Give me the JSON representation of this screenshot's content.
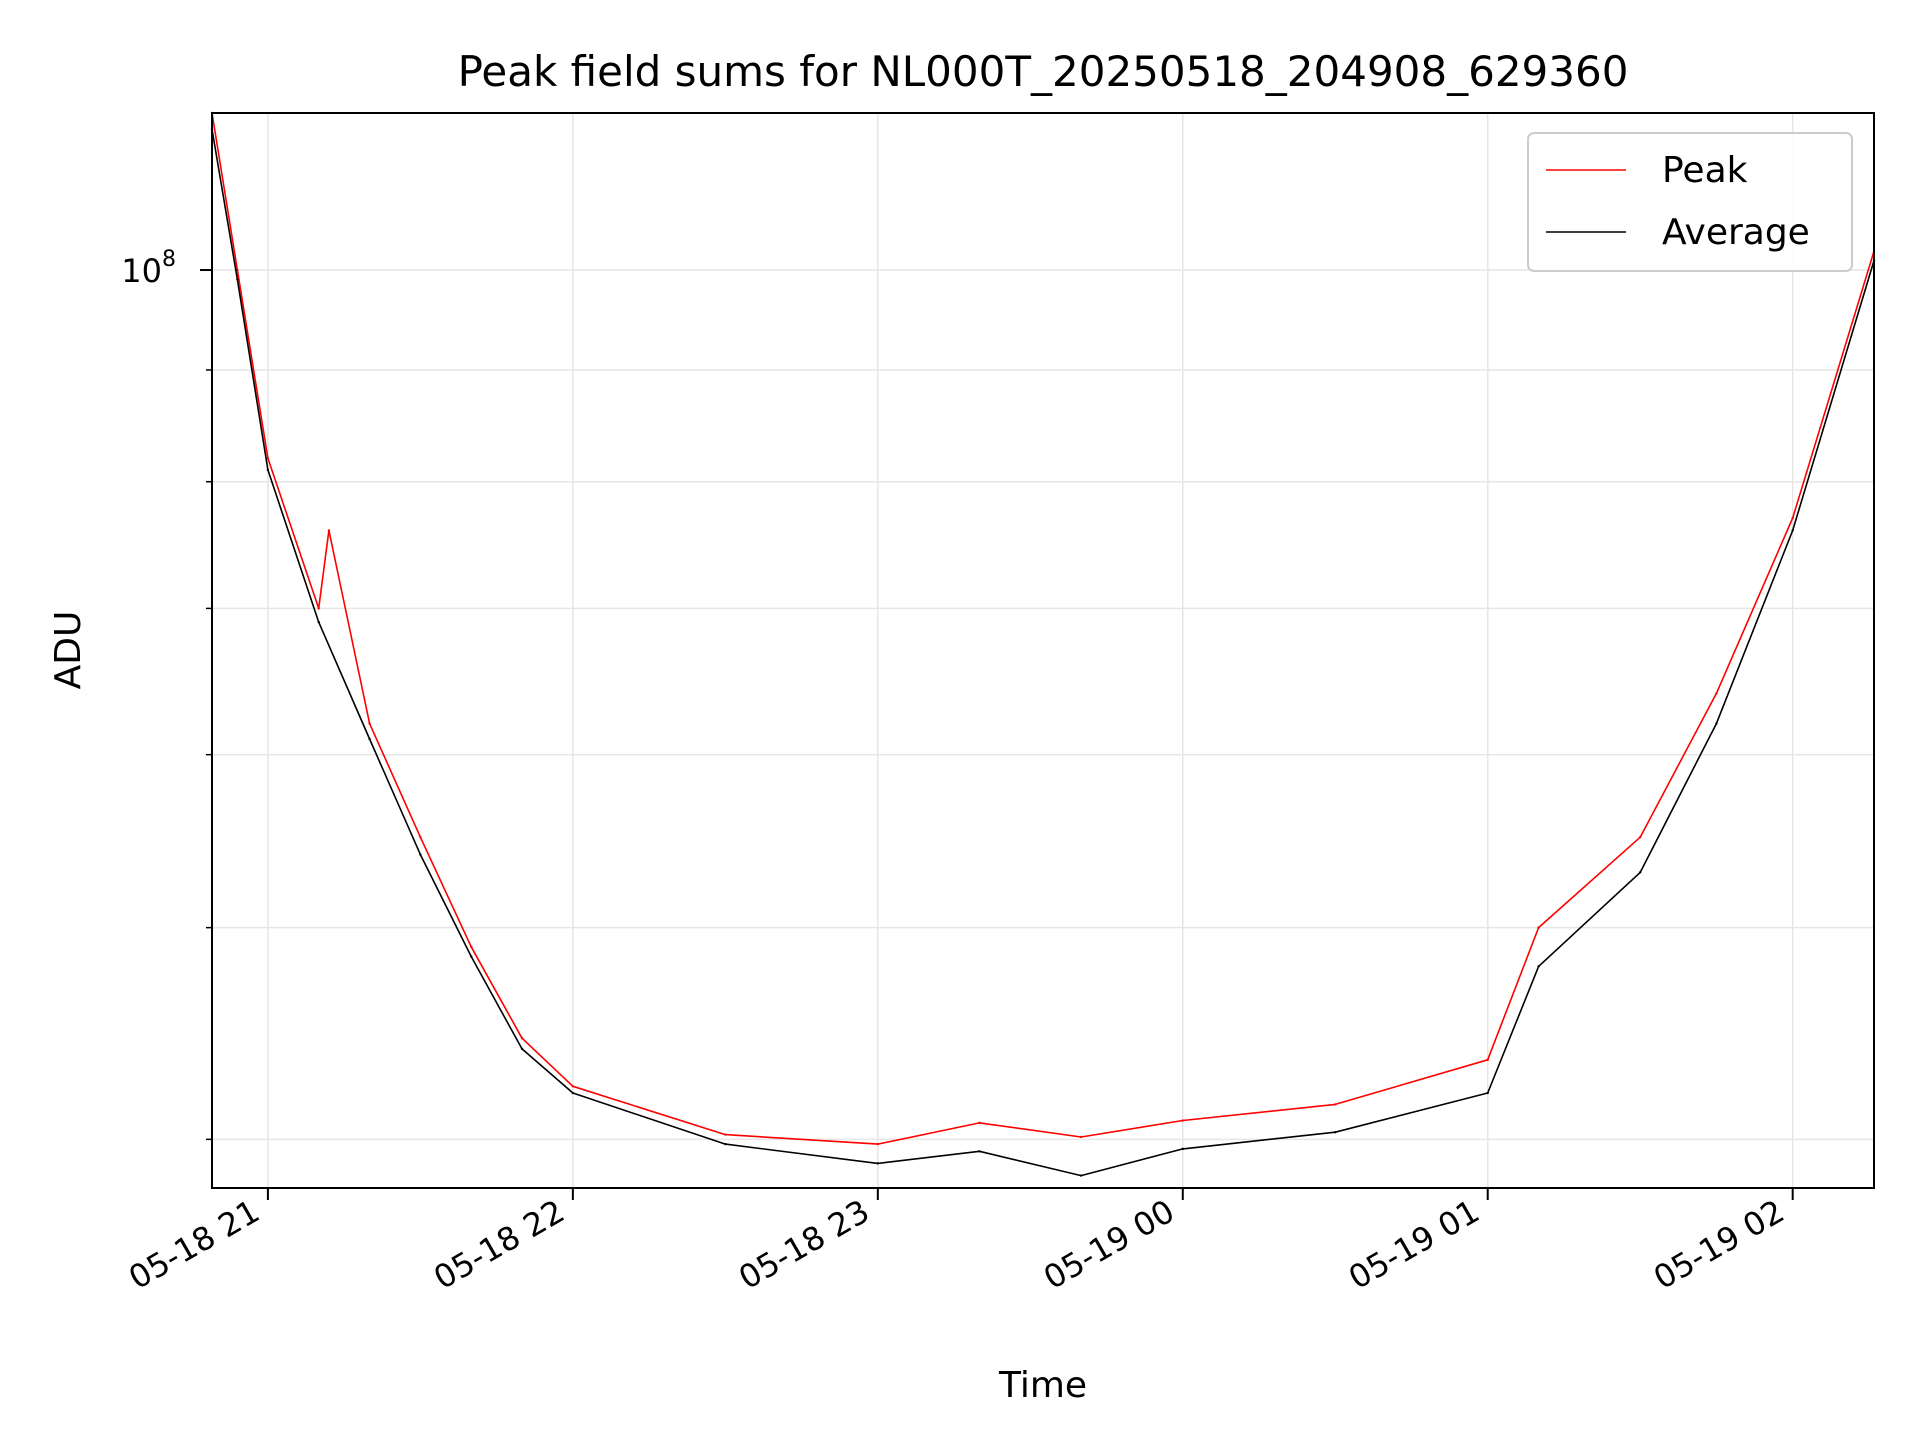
{
  "chart_data": {
    "type": "line",
    "title": "Peak field sums for NL000T_20250518_204908_629360",
    "xlabel": "Time",
    "ylabel": "ADU",
    "yscale": "log",
    "ylim": [
      38000000,
      118000000
    ],
    "xlim": [
      "2025-05-18 20:49",
      "2025-05-19 02:16"
    ],
    "x_ticks": [
      "05-18 21",
      "05-18 22",
      "05-18 23",
      "05-19 00",
      "05-19 01",
      "05-19 02"
    ],
    "y_ticks": [
      {
        "value": 100000000,
        "base": "10",
        "exp": "8"
      }
    ],
    "grid": true,
    "legend": "top-right",
    "series": [
      {
        "name": "Peak",
        "color": "#ff0000",
        "points": [
          [
            "2025-05-18 20:49",
            118000000
          ],
          [
            "2025-05-18 20:54",
            100000000
          ],
          [
            "2025-05-18 21:00",
            82000000
          ],
          [
            "2025-05-18 21:10",
            70000000
          ],
          [
            "2025-05-18 21:12",
            76000000
          ],
          [
            "2025-05-18 21:20",
            62000000
          ],
          [
            "2025-05-18 21:30",
            55000000
          ],
          [
            "2025-05-18 21:40",
            49000000
          ],
          [
            "2025-05-18 21:50",
            44500000
          ],
          [
            "2025-05-18 22:00",
            42300000
          ],
          [
            "2025-05-18 22:30",
            40200000
          ],
          [
            "2025-05-18 23:00",
            39800000
          ],
          [
            "2025-05-18 23:20",
            40700000
          ],
          [
            "2025-05-18 23:40",
            40100000
          ],
          [
            "2025-05-19 00:00",
            40800000
          ],
          [
            "2025-05-19 00:30",
            41500000
          ],
          [
            "2025-05-19 01:00",
            43500000
          ],
          [
            "2025-05-19 01:10",
            50000000
          ],
          [
            "2025-05-19 01:30",
            55000000
          ],
          [
            "2025-05-19 01:45",
            64000000
          ],
          [
            "2025-05-19 02:00",
            77000000
          ],
          [
            "2025-05-19 02:16",
            102000000
          ]
        ]
      },
      {
        "name": "Average",
        "color": "#000000",
        "points": [
          [
            "2025-05-18 20:49",
            116000000
          ],
          [
            "2025-05-18 20:54",
            99000000
          ],
          [
            "2025-05-18 21:00",
            81000000
          ],
          [
            "2025-05-18 21:10",
            69000000
          ],
          [
            "2025-05-18 21:20",
            61000000
          ],
          [
            "2025-05-18 21:30",
            54000000
          ],
          [
            "2025-05-18 21:40",
            48500000
          ],
          [
            "2025-05-18 21:50",
            44000000
          ],
          [
            "2025-05-18 22:00",
            42000000
          ],
          [
            "2025-05-18 22:30",
            39800000
          ],
          [
            "2025-05-18 23:00",
            39000000
          ],
          [
            "2025-05-18 23:20",
            39500000
          ],
          [
            "2025-05-18 23:40",
            38500000
          ],
          [
            "2025-05-19 00:00",
            39600000
          ],
          [
            "2025-05-19 00:30",
            40300000
          ],
          [
            "2025-05-19 01:00",
            42000000
          ],
          [
            "2025-05-19 01:10",
            48000000
          ],
          [
            "2025-05-19 01:30",
            53000000
          ],
          [
            "2025-05-19 01:45",
            62000000
          ],
          [
            "2025-05-19 02:00",
            76000000
          ],
          [
            "2025-05-19 02:16",
            101000000
          ]
        ]
      }
    ]
  }
}
